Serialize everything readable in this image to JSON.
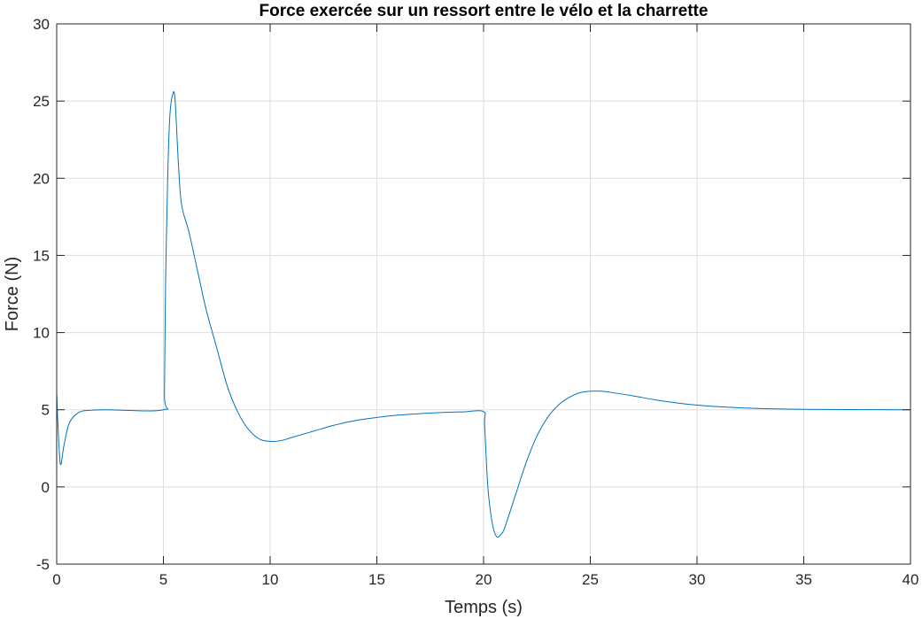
{
  "chart_data": {
    "type": "line",
    "title": "Force exercée sur un ressort entre le vélo et la charrette",
    "xlabel": "Temps (s)",
    "ylabel": "Force (N)",
    "xlim": [
      0,
      40
    ],
    "ylim": [
      -5,
      30
    ],
    "xticks": [
      0,
      5,
      10,
      15,
      20,
      25,
      30,
      35,
      40
    ],
    "yticks": [
      -5,
      0,
      5,
      10,
      15,
      20,
      25,
      30
    ],
    "grid": true,
    "line_color": "#0072BD",
    "series": [
      {
        "x": [
          0,
          0,
          0.04,
          0.17,
          0.33,
          0.58,
          1.0,
          1.5,
          2.3,
          5.0,
          5.05,
          5.1,
          5.2,
          5.3,
          5.45,
          5.55,
          5.7,
          5.85,
          6.2,
          6.6,
          7,
          7.5,
          8,
          8.5,
          9,
          9.5,
          10,
          10.5,
          11,
          12,
          13,
          14,
          15,
          16,
          17,
          18,
          19,
          20,
          20.05,
          20.2,
          20.4,
          20.6,
          20.8,
          21,
          21.5,
          22,
          22.5,
          23,
          23.5,
          24,
          24.5,
          25,
          25.5,
          26,
          27,
          28,
          29,
          30,
          31,
          32,
          33,
          34,
          35,
          37,
          40
        ],
        "y": [
          0,
          5.74,
          4.6,
          1.5,
          2.6,
          4.1,
          4.8,
          4.96,
          5,
          5,
          6,
          13,
          20,
          24,
          25.5,
          25,
          21,
          18.3,
          16.5,
          14,
          11.5,
          9,
          6.5,
          4.8,
          3.7,
          3.1,
          2.95,
          3.0,
          3.2,
          3.6,
          4.0,
          4.3,
          4.5,
          4.65,
          4.75,
          4.82,
          4.86,
          4.88,
          4,
          0,
          -2.3,
          -3.2,
          -3.1,
          -2.6,
          -0.5,
          1.6,
          3.3,
          4.5,
          5.3,
          5.8,
          6.1,
          6.2,
          6.2,
          6.12,
          5.9,
          5.65,
          5.45,
          5.3,
          5.2,
          5.13,
          5.08,
          5.05,
          5.03,
          5.01,
          5.0
        ]
      }
    ]
  }
}
